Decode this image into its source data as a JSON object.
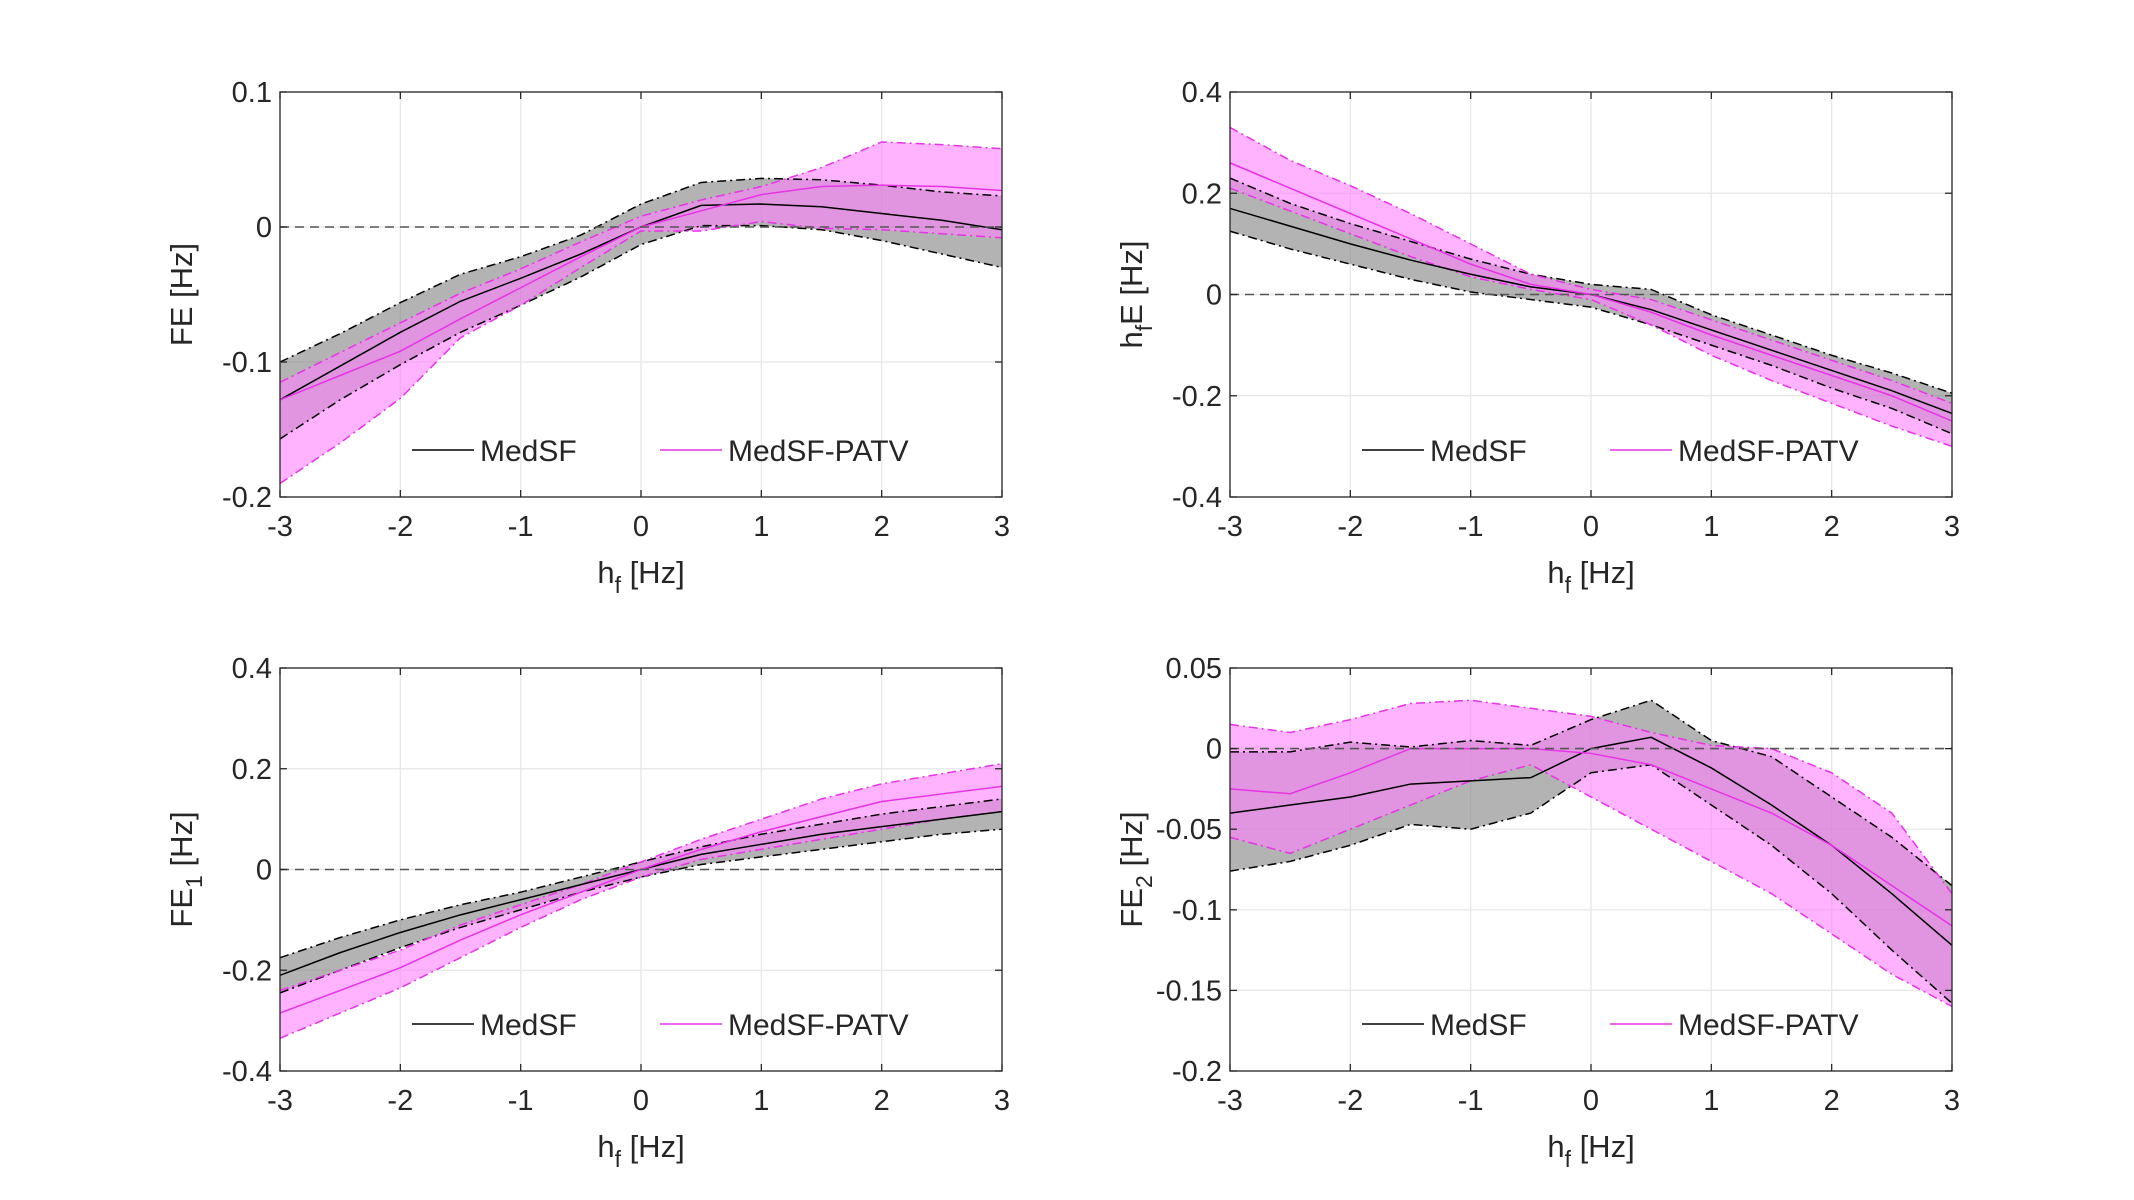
{
  "chart_data": [
    {
      "type": "line",
      "ylabel": "FE [Hz]",
      "ylabel_sub": "",
      "ylabel_pre": "",
      "xlabel": "h",
      "xlabel_sub": "f",
      "xlabel_unit": "[Hz]",
      "xlim": [
        -3,
        3
      ],
      "ylim": [
        -0.2,
        0.1
      ],
      "xticks": [
        "-3",
        "-2",
        "-1",
        "0",
        "1",
        "2",
        "3"
      ],
      "yticks": [
        "-0.2",
        "-0.1",
        "0",
        "0.1"
      ],
      "x": [
        -3,
        -2.5,
        -2,
        -1.5,
        -1,
        -0.5,
        0,
        0.5,
        1,
        1.5,
        2,
        2.5,
        3
      ],
      "series": [
        {
          "name": "MedSF",
          "color": "#000000",
          "fill": "#808080",
          "values": [
            -0.128,
            -0.103,
            -0.078,
            -0.055,
            -0.038,
            -0.02,
            0.0,
            0.016,
            0.017,
            0.015,
            0.01,
            0.005,
            -0.002
          ],
          "upper": [
            -0.1,
            -0.079,
            -0.056,
            -0.035,
            -0.022,
            -0.006,
            0.017,
            0.033,
            0.036,
            0.035,
            0.031,
            0.026,
            0.023
          ],
          "lower": [
            -0.157,
            -0.128,
            -0.102,
            -0.078,
            -0.058,
            -0.037,
            -0.013,
            0.001,
            0.001,
            -0.002,
            -0.01,
            -0.02,
            -0.03
          ]
        },
        {
          "name": "MedSF-PATV",
          "color": "#e633e6",
          "fill": "#ff80ff",
          "values": [
            -0.128,
            -0.11,
            -0.092,
            -0.068,
            -0.045,
            -0.022,
            0.0,
            0.012,
            0.024,
            0.03,
            0.031,
            0.03,
            0.027
          ],
          "upper": [
            -0.115,
            -0.093,
            -0.071,
            -0.049,
            -0.031,
            -0.011,
            0.008,
            0.02,
            0.03,
            0.044,
            0.063,
            0.061,
            0.058
          ],
          "lower": [
            -0.19,
            -0.16,
            -0.127,
            -0.082,
            -0.058,
            -0.03,
            -0.003,
            -0.003,
            0.004,
            -0.001,
            -0.002,
            -0.005,
            -0.008
          ]
        }
      ]
    },
    {
      "type": "line",
      "ylabel": "E [Hz]",
      "ylabel_sub": "f",
      "ylabel_pre": "h",
      "xlabel": "h",
      "xlabel_sub": "f",
      "xlabel_unit": "[Hz]",
      "xlim": [
        -3,
        3
      ],
      "ylim": [
        -0.4,
        0.4
      ],
      "xticks": [
        "-3",
        "-2",
        "-1",
        "0",
        "1",
        "2",
        "3"
      ],
      "yticks": [
        "-0.4",
        "-0.2",
        "0",
        "0.2",
        "0.4"
      ],
      "x": [
        -3,
        -2.5,
        -2,
        -1.5,
        -1,
        -0.5,
        0,
        0.5,
        1,
        1.5,
        2,
        2.5,
        3
      ],
      "series": [
        {
          "name": "MedSF",
          "color": "#000000",
          "fill": "#808080",
          "values": [
            0.17,
            0.135,
            0.1,
            0.068,
            0.04,
            0.015,
            0.0,
            -0.03,
            -0.07,
            -0.11,
            -0.15,
            -0.19,
            -0.235
          ],
          "upper": [
            0.23,
            0.18,
            0.14,
            0.105,
            0.07,
            0.04,
            0.02,
            0.01,
            -0.04,
            -0.08,
            -0.12,
            -0.155,
            -0.195
          ],
          "lower": [
            0.125,
            0.09,
            0.06,
            0.03,
            0.005,
            -0.01,
            -0.025,
            -0.06,
            -0.1,
            -0.14,
            -0.185,
            -0.225,
            -0.275
          ]
        },
        {
          "name": "MedSF-PATV",
          "color": "#e633e6",
          "fill": "#ff80ff",
          "values": [
            0.26,
            0.21,
            0.16,
            0.11,
            0.06,
            0.02,
            0.0,
            -0.035,
            -0.08,
            -0.12,
            -0.16,
            -0.2,
            -0.25
          ],
          "upper": [
            0.33,
            0.265,
            0.215,
            0.16,
            0.1,
            0.04,
            0.01,
            -0.01,
            -0.05,
            -0.09,
            -0.13,
            -0.17,
            -0.215
          ],
          "lower": [
            0.21,
            0.165,
            0.12,
            0.075,
            0.035,
            0.01,
            -0.01,
            -0.06,
            -0.12,
            -0.17,
            -0.215,
            -0.26,
            -0.3
          ]
        }
      ]
    },
    {
      "type": "line",
      "ylabel": "FE",
      "ylabel_sub": "1",
      "ylabel_pre": "",
      "ylabel_unit": "[Hz]",
      "xlabel": "h",
      "xlabel_sub": "f",
      "xlabel_unit": "[Hz]",
      "xlim": [
        -3,
        3
      ],
      "ylim": [
        -0.4,
        0.4
      ],
      "xticks": [
        "-3",
        "-2",
        "-1",
        "0",
        "1",
        "2",
        "3"
      ],
      "yticks": [
        "-0.4",
        "-0.2",
        "0",
        "0.2",
        "0.4"
      ],
      "x": [
        -3,
        -2.5,
        -2,
        -1.5,
        -1,
        -0.5,
        0,
        0.5,
        1,
        1.5,
        2,
        2.5,
        3
      ],
      "series": [
        {
          "name": "MedSF",
          "color": "#000000",
          "fill": "#808080",
          "values": [
            -0.21,
            -0.165,
            -0.125,
            -0.09,
            -0.06,
            -0.03,
            0.0,
            0.03,
            0.05,
            0.07,
            0.085,
            0.1,
            0.115
          ],
          "upper": [
            -0.175,
            -0.135,
            -0.1,
            -0.07,
            -0.045,
            -0.015,
            0.015,
            0.045,
            0.07,
            0.09,
            0.11,
            0.125,
            0.14
          ],
          "lower": [
            -0.245,
            -0.2,
            -0.155,
            -0.115,
            -0.08,
            -0.045,
            -0.015,
            0.01,
            0.025,
            0.04,
            0.055,
            0.07,
            0.08
          ]
        },
        {
          "name": "MedSF-PATV",
          "color": "#e633e6",
          "fill": "#ff80ff",
          "values": [
            -0.285,
            -0.24,
            -0.195,
            -0.14,
            -0.09,
            -0.045,
            0.0,
            0.04,
            0.075,
            0.105,
            0.135,
            0.15,
            0.165
          ],
          "upper": [
            -0.24,
            -0.2,
            -0.16,
            -0.11,
            -0.07,
            -0.03,
            0.015,
            0.06,
            0.1,
            0.14,
            0.17,
            0.19,
            0.21
          ],
          "lower": [
            -0.335,
            -0.285,
            -0.235,
            -0.175,
            -0.115,
            -0.06,
            -0.015,
            0.02,
            0.04,
            0.06,
            0.08,
            0.1,
            0.115
          ]
        }
      ]
    },
    {
      "type": "line",
      "ylabel": "FE",
      "ylabel_sub": "2",
      "ylabel_pre": "",
      "ylabel_unit": "[Hz]",
      "xlabel": "h",
      "xlabel_sub": "f",
      "xlabel_unit": "[Hz]",
      "xlim": [
        -3,
        3
      ],
      "ylim": [
        -0.2,
        0.05
      ],
      "xticks": [
        "-3",
        "-2",
        "-1",
        "0",
        "1",
        "2",
        "3"
      ],
      "yticks": [
        "-0.2",
        "-0.15",
        "-0.1",
        "-0.05",
        "0",
        "0.05"
      ],
      "x": [
        -3,
        -2.5,
        -2,
        -1.5,
        -1,
        -0.5,
        0,
        0.5,
        1,
        1.5,
        2,
        2.5,
        3
      ],
      "series": [
        {
          "name": "MedSF",
          "color": "#000000",
          "fill": "#808080",
          "values": [
            -0.04,
            -0.035,
            -0.03,
            -0.022,
            -0.02,
            -0.018,
            0.0,
            0.007,
            -0.012,
            -0.035,
            -0.06,
            -0.09,
            -0.122
          ],
          "upper": [
            -0.002,
            -0.002,
            0.004,
            0.001,
            0.005,
            0.002,
            0.018,
            0.03,
            0.005,
            -0.005,
            -0.03,
            -0.055,
            -0.085
          ],
          "lower": [
            -0.076,
            -0.07,
            -0.06,
            -0.047,
            -0.05,
            -0.04,
            -0.015,
            -0.01,
            -0.035,
            -0.06,
            -0.09,
            -0.125,
            -0.158
          ]
        },
        {
          "name": "MedSF-PATV",
          "color": "#e633e6",
          "fill": "#ff80ff",
          "values": [
            -0.025,
            -0.028,
            -0.015,
            0.0,
            0.0,
            0.0,
            -0.003,
            -0.01,
            -0.025,
            -0.04,
            -0.06,
            -0.085,
            -0.11
          ],
          "upper": [
            0.015,
            0.01,
            0.018,
            0.028,
            0.03,
            0.025,
            0.02,
            0.01,
            0.002,
            0.0,
            -0.015,
            -0.04,
            -0.09
          ],
          "lower": [
            -0.055,
            -0.065,
            -0.05,
            -0.035,
            -0.02,
            -0.01,
            -0.03,
            -0.05,
            -0.07,
            -0.09,
            -0.115,
            -0.14,
            -0.16
          ]
        }
      ]
    }
  ]
}
